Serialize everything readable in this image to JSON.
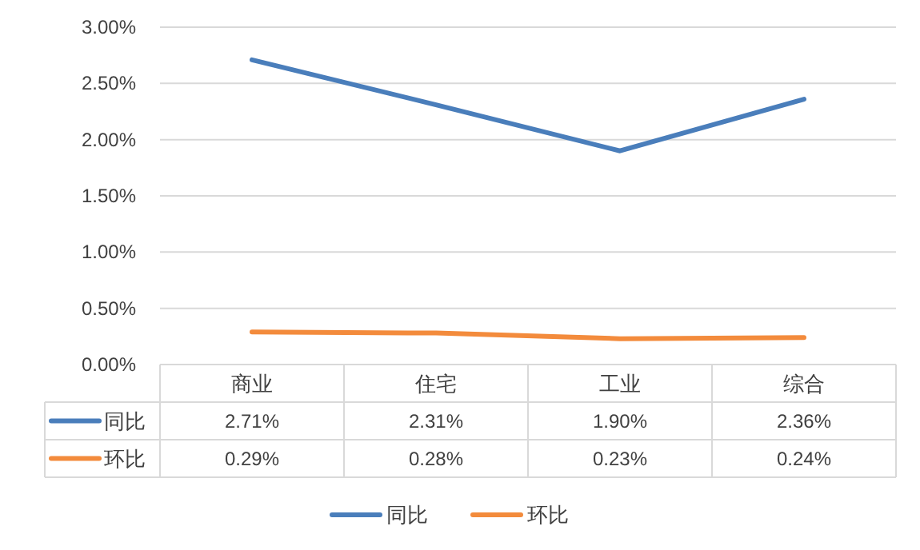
{
  "chart_data": {
    "type": "line",
    "categories": [
      "商业",
      "住宅",
      "工业",
      "综合"
    ],
    "series": [
      {
        "name": "同比",
        "color": "#4a7ebb",
        "values": [
          2.71,
          2.31,
          1.9,
          2.36
        ],
        "value_labels": [
          "2.71%",
          "2.31%",
          "1.90%",
          "2.36%"
        ]
      },
      {
        "name": "环比",
        "color": "#f38b3c",
        "values": [
          0.29,
          0.28,
          0.23,
          0.24
        ],
        "value_labels": [
          "0.29%",
          "0.28%",
          "0.23%",
          "0.24%"
        ]
      }
    ],
    "ylim": [
      0,
      3
    ],
    "yticks": [
      {
        "value": 0,
        "label": "0.00%"
      },
      {
        "value": 0.5,
        "label": "0.50%"
      },
      {
        "value": 1,
        "label": "1.00%"
      },
      {
        "value": 1.5,
        "label": "1.50%"
      },
      {
        "value": 2,
        "label": "2.00%"
      },
      {
        "value": 2.5,
        "label": "2.50%"
      },
      {
        "value": 3,
        "label": "3.00%"
      }
    ],
    "grid": "y",
    "legend": "bottom",
    "marker": "none",
    "line_style": "solid"
  }
}
